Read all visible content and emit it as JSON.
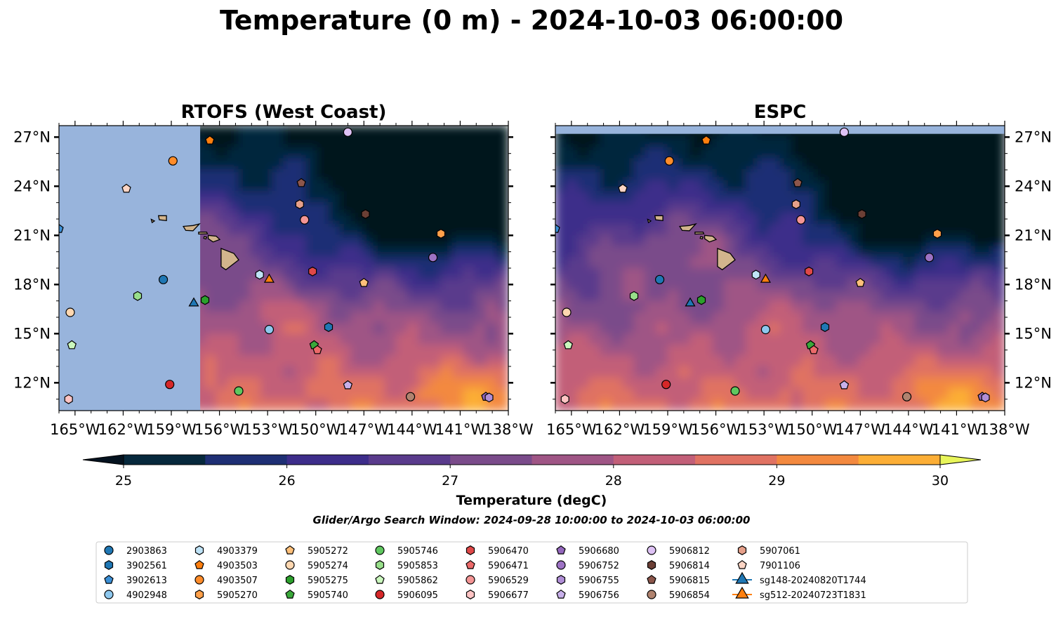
{
  "title": "Temperature (0 m) - 2024-10-03 06:00:00",
  "search_window": "Glider/Argo Search Window: 2024-09-28 10:00:00 to 2024-10-03 06:00:00",
  "colorbar": {
    "label": "Temperature (degC)",
    "ticks": [
      "25",
      "26",
      "27",
      "28",
      "29",
      "30"
    ],
    "min": 25,
    "max": 30,
    "step": 0.5,
    "under_color": "#04121f",
    "over_color": "#e8f55a",
    "colors": [
      "#06283c",
      "#1e2f74",
      "#3d2d8a",
      "#5a3b8c",
      "#7a4b8a",
      "#9f5585",
      "#c25f78",
      "#e07262",
      "#f3893f",
      "#fcae36"
    ]
  },
  "chart_data": [
    {
      "type": "heatmap",
      "title": "RTOFS (West Coast)",
      "xlim": [
        -166,
        -138
      ],
      "ylim": [
        10.3,
        27.7
      ],
      "x_ticks": [
        "165°W",
        "162°W",
        "159°W",
        "156°W",
        "153°W",
        "150°W",
        "147°W",
        "144°W",
        "141°W",
        "138°W"
      ],
      "y_ticks": [
        "12°N",
        "15°N",
        "18°N",
        "21°N",
        "24°N",
        "27°N"
      ],
      "y_tick_side": "left",
      "no_data_west_of": -157.2,
      "land_color": "#d2b48c",
      "nodata_color": "#98b4dc"
    },
    {
      "type": "heatmap",
      "title": "ESPC",
      "xlim": [
        -166,
        -138
      ],
      "ylim": [
        10.3,
        27.7
      ],
      "x_ticks": [
        "165°W",
        "162°W",
        "159°W",
        "156°W",
        "153°W",
        "150°W",
        "147°W",
        "144°W",
        "141°W",
        "138°W"
      ],
      "y_ticks": [
        "12°N",
        "15°N",
        "18°N",
        "21°N",
        "24°N",
        "27°N"
      ],
      "y_tick_side": "right",
      "no_data_north_of": 27.2,
      "land_color": "#d2b48c",
      "nodata_color": "#98b4dc"
    }
  ],
  "legend": [
    {
      "id": "2903863",
      "marker": "circle",
      "color": "#1f77b4",
      "lon": -159.5,
      "lat": 18.3
    },
    {
      "id": "3902561",
      "marker": "hexagon",
      "color": "#1f77b4",
      "lon": -149.2,
      "lat": 15.4
    },
    {
      "id": "3902613",
      "marker": "pentagon",
      "color": "#3b8fd6",
      "lon": -166.0,
      "lat": 21.4
    },
    {
      "id": "4902948",
      "marker": "circle",
      "color": "#8ec8ee",
      "lon": -152.9,
      "lat": 15.25
    },
    {
      "id": "4903379",
      "marker": "hexagon",
      "color": "#bfe3f7",
      "lon": -153.5,
      "lat": 18.6
    },
    {
      "id": "4903503",
      "marker": "pentagon",
      "color": "#ff7f0e",
      "lon": -156.6,
      "lat": 26.8
    },
    {
      "id": "4903507",
      "marker": "circle",
      "color": "#ff8c2a",
      "lon": -158.9,
      "lat": 25.55
    },
    {
      "id": "5905270",
      "marker": "hexagon",
      "color": "#ffa04a",
      "lon": -142.2,
      "lat": 21.1
    },
    {
      "id": "5905272",
      "marker": "pentagon",
      "color": "#ffc07a",
      "lon": -147.0,
      "lat": 18.1
    },
    {
      "id": "5905274",
      "marker": "circle",
      "color": "#ffd7b0",
      "lon": -165.3,
      "lat": 16.3
    },
    {
      "id": "5905275",
      "marker": "hexagon",
      "color": "#2ca02c",
      "lon": -156.9,
      "lat": 17.05
    },
    {
      "id": "5905740",
      "marker": "pentagon",
      "color": "#3aa83a",
      "lon": -150.1,
      "lat": 14.3
    },
    {
      "id": "5905746",
      "marker": "circle",
      "color": "#5fc75f",
      "lon": -154.8,
      "lat": 11.5
    },
    {
      "id": "5905853",
      "marker": "hexagon",
      "color": "#98df8a",
      "lon": -161.1,
      "lat": 17.3
    },
    {
      "id": "5905862",
      "marker": "pentagon",
      "color": "#caf7bd",
      "lon": -165.2,
      "lat": 14.3
    },
    {
      "id": "5906095",
      "marker": "circle",
      "color": "#d62728",
      "lon": -159.1,
      "lat": 11.9
    },
    {
      "id": "5906470",
      "marker": "hexagon",
      "color": "#e04848",
      "lon": -150.2,
      "lat": 18.8
    },
    {
      "id": "5906471",
      "marker": "pentagon",
      "color": "#ec6a6a",
      "lon": -149.9,
      "lat": 14.0
    },
    {
      "id": "5906529",
      "marker": "circle",
      "color": "#f49595",
      "lon": -150.7,
      "lat": 21.95
    },
    {
      "id": "5906677",
      "marker": "hexagon",
      "color": "#ffc4c4",
      "lon": -165.4,
      "lat": 11.0
    },
    {
      "id": "5906680",
      "marker": "pentagon",
      "color": "#9467bd",
      "lon": -139.4,
      "lat": 11.15
    },
    {
      "id": "5906752",
      "marker": "circle",
      "color": "#9d72c4",
      "lon": -142.7,
      "lat": 19.65
    },
    {
      "id": "5906755",
      "marker": "hexagon",
      "color": "#b08ed6",
      "lon": -139.2,
      "lat": 11.1
    },
    {
      "id": "5906756",
      "marker": "pentagon",
      "color": "#c8b0ea",
      "lon": -148.0,
      "lat": 11.85
    },
    {
      "id": "5906812",
      "marker": "circle",
      "color": "#dec2f5",
      "lon": -148.0,
      "lat": 27.3
    },
    {
      "id": "5906814",
      "marker": "hexagon",
      "color": "#6b3f35",
      "lon": -146.9,
      "lat": 22.3
    },
    {
      "id": "5906815",
      "marker": "pentagon",
      "color": "#8c564b",
      "lon": -150.9,
      "lat": 24.2
    },
    {
      "id": "5906854",
      "marker": "circle",
      "color": "#b0836f",
      "lon": -144.1,
      "lat": 11.15
    },
    {
      "id": "5907061",
      "marker": "hexagon",
      "color": "#e6a08a",
      "lon": -151.0,
      "lat": 22.9
    },
    {
      "id": "7901106",
      "marker": "pentagon",
      "color": "#fcd5c5",
      "lon": -161.8,
      "lat": 23.85
    },
    {
      "id": "sg148-20240820T1744",
      "marker": "triangle",
      "color": "#1f77b4",
      "lon": -157.6,
      "lat": 16.85
    },
    {
      "id": "sg512-20240723T1831",
      "marker": "triangle",
      "color": "#ff7f0e",
      "lon": -152.9,
      "lat": 18.3
    }
  ]
}
